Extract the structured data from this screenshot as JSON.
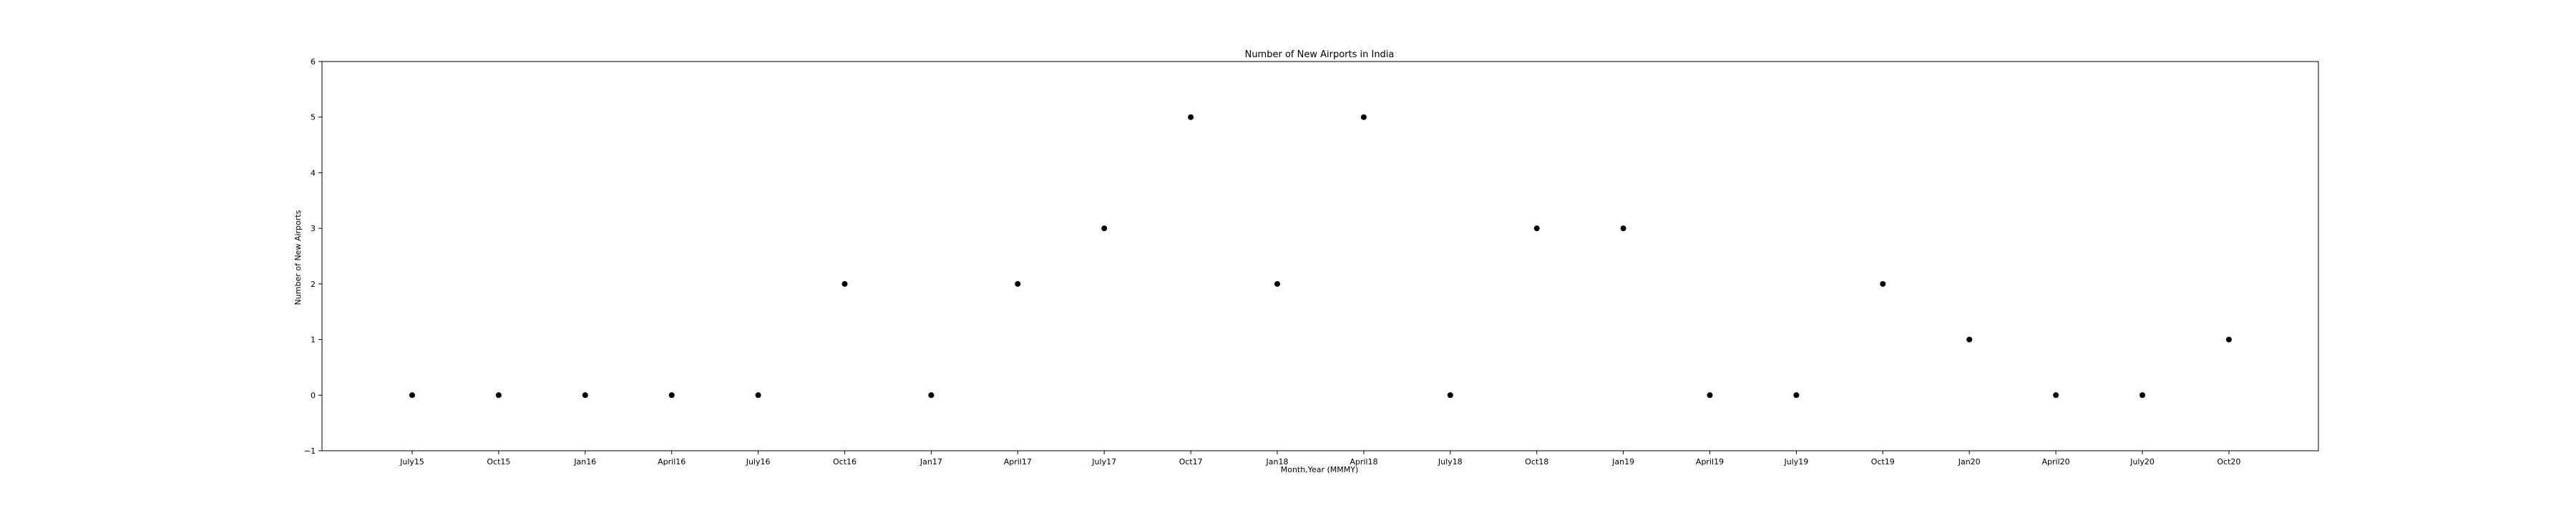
{
  "chart_data": {
    "type": "scatter",
    "title": "Number of New Airports in India",
    "xlabel": "Month,Year (MMMY)",
    "ylabel": "Number of New Airports",
    "categories": [
      "July15",
      "Oct15",
      "Jan16",
      "April16",
      "July16",
      "Oct16",
      "Jan17",
      "April17",
      "July17",
      "Oct17",
      "Jan18",
      "April18",
      "July18",
      "Oct18",
      "Jan19",
      "April19",
      "July19",
      "Oct19",
      "Jan20",
      "April20",
      "July20",
      "Oct20"
    ],
    "values": [
      0,
      0,
      0,
      0,
      0,
      2,
      0,
      2,
      3,
      5,
      2,
      5,
      0,
      3,
      3,
      0,
      0,
      2,
      1,
      0,
      0,
      1
    ],
    "ylim": [
      -1,
      6
    ],
    "yticks": [
      -1,
      0,
      1,
      2,
      3,
      4,
      5,
      6
    ],
    "ytick_labels": [
      "−1",
      "0",
      "1",
      "2",
      "3",
      "4",
      "5",
      "6"
    ],
    "grid": false,
    "legend": "none",
    "marker_color": "#000000"
  }
}
